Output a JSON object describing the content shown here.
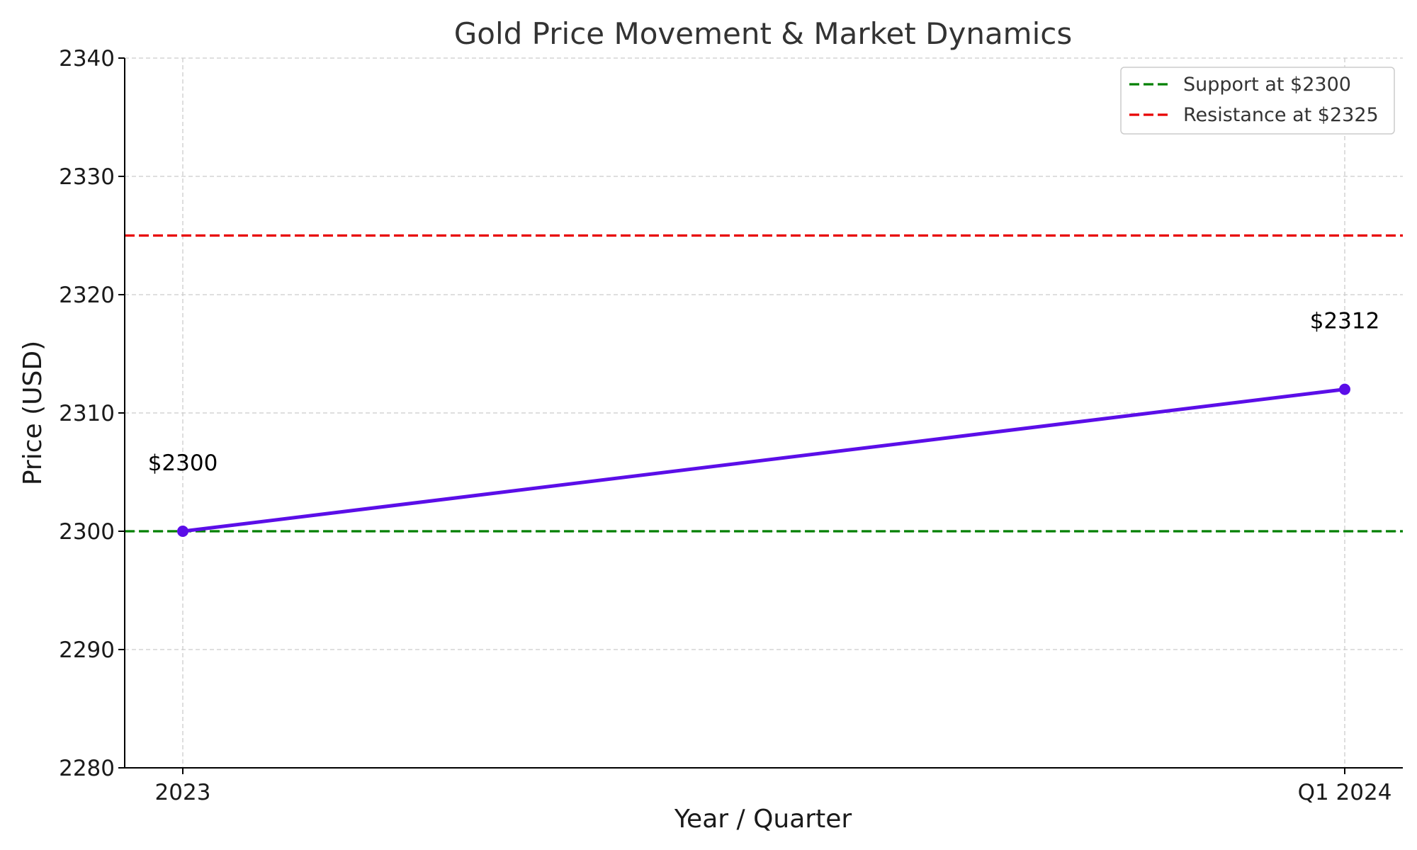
{
  "chart_data": {
    "type": "line",
    "title": "Gold Price Movement & Market Dynamics",
    "xlabel": "Year / Quarter",
    "ylabel": "Price (USD)",
    "categories": [
      "2023",
      "Q1 2024"
    ],
    "series": [
      {
        "values": [
          2300,
          2312
        ],
        "color": "#5b0ee8"
      }
    ],
    "data_labels": [
      "$2300",
      "$2312"
    ],
    "reference_lines": [
      {
        "name": "Support at $2300",
        "value": 2300,
        "color": "#008000",
        "style": "dashed"
      },
      {
        "name": "Resistance at $2325",
        "value": 2325,
        "color": "#e80000",
        "style": "dashed"
      }
    ],
    "ylim": [
      2280,
      2340
    ],
    "yticks": [
      2280,
      2290,
      2300,
      2310,
      2320,
      2330,
      2340
    ],
    "grid": true,
    "legend_position": "top-right"
  }
}
